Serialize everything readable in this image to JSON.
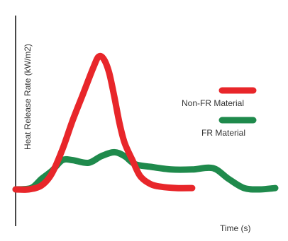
{
  "chart_data": {
    "type": "line",
    "title": "",
    "xlabel": "Time (s)",
    "ylabel": "Heat Release Rate (kW/m2)",
    "xlim": [
      0,
      100
    ],
    "ylim": [
      0,
      100
    ],
    "grid": false,
    "legend_position": "right",
    "series": [
      {
        "name": "Non-FR Material",
        "color": "#e8262a",
        "x": [
          0,
          5,
          10,
          14,
          18,
          22,
          26,
          30,
          32,
          34,
          36,
          38,
          40,
          42,
          45,
          48,
          52,
          56,
          62,
          68
        ],
        "y": [
          0,
          0,
          3,
          12,
          30,
          52,
          72,
          92,
          100,
          98,
          88,
          70,
          50,
          35,
          22,
          10,
          4,
          2,
          1,
          1
        ]
      },
      {
        "name": "FR Material",
        "color": "#1f8a4c",
        "x": [
          0,
          6,
          10,
          14,
          18,
          22,
          28,
          33,
          38,
          42,
          46,
          52,
          60,
          68,
          76,
          82,
          88,
          94,
          100
        ],
        "y": [
          0,
          1,
          8,
          14,
          22,
          22,
          20,
          25,
          28,
          25,
          19,
          17,
          15,
          15,
          16,
          8,
          1,
          0,
          1
        ]
      }
    ]
  }
}
